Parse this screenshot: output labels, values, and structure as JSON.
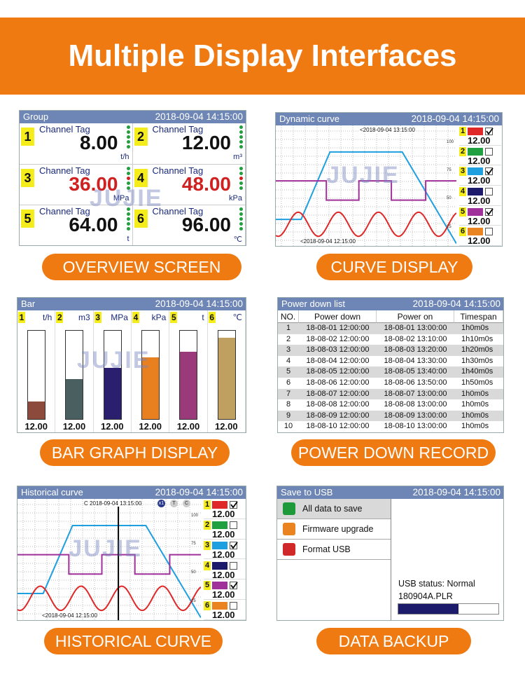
{
  "header": {
    "title": "Multiple Display Interfaces"
  },
  "overview": {
    "title": "Group",
    "datetime": "2018-09-04 14:15:00",
    "watermark": "JUJIE",
    "caption": "OVERVIEW SCREEN",
    "channels": [
      {
        "no": "1",
        "tag": "Channel Tag",
        "value": "8.00",
        "unit": "t/h",
        "color": "#111111"
      },
      {
        "no": "2",
        "tag": "Channel Tag",
        "value": "12.00",
        "unit": "m³",
        "color": "#111111"
      },
      {
        "no": "3",
        "tag": "Channel Tag",
        "value": "36.00",
        "unit": "MPa",
        "color": "#d02020"
      },
      {
        "no": "4",
        "tag": "Channel Tag",
        "value": "48.00",
        "unit": "kPa",
        "color": "#d02020"
      },
      {
        "no": "5",
        "tag": "Channel Tag",
        "value": "64.00",
        "unit": "t",
        "color": "#111111"
      },
      {
        "no": "6",
        "tag": "Channel Tag",
        "value": "96.00",
        "unit": "℃",
        "color": "#111111"
      }
    ]
  },
  "curve": {
    "title": "Dynamic curve",
    "datetime": "2018-09-04 14:15:00",
    "watermark": "JUJIE",
    "caption": "CURVE DISPLAY",
    "time_top": "<2018-09-04 13:15:00",
    "time_bottom": "<2018-09-04 12:15:00",
    "yticks": [
      "100",
      "75",
      "50",
      "25"
    ],
    "legend": [
      {
        "no": "1",
        "color": "#e02828",
        "value": "12.00",
        "checked": true
      },
      {
        "no": "2",
        "color": "#20a040",
        "value": "12.00",
        "checked": false
      },
      {
        "no": "3",
        "color": "#1ea0e0",
        "value": "12.00",
        "checked": true
      },
      {
        "no": "4",
        "color": "#1c1a6a",
        "value": "12.00",
        "checked": false
      },
      {
        "no": "5",
        "color": "#a0309a",
        "value": "12.00",
        "checked": true
      },
      {
        "no": "6",
        "color": "#ea8420",
        "value": "12.00",
        "checked": false
      }
    ]
  },
  "bar": {
    "title": "Bar",
    "datetime": "2018-09-04 14:15:00",
    "watermark": "JUJIE",
    "caption": "BAR GRAPH DISPLAY",
    "channels": [
      {
        "no": "1",
        "unit": "t/h",
        "value": "12.00",
        "level": 20,
        "color": "#8c4a3c"
      },
      {
        "no": "2",
        "unit": "m3",
        "value": "12.00",
        "level": 45,
        "color": "#4a5f60"
      },
      {
        "no": "3",
        "unit": "MPa",
        "value": "12.00",
        "level": 58,
        "color": "#2a1f6e"
      },
      {
        "no": "4",
        "unit": "kPa",
        "value": "12.00",
        "level": 70,
        "color": "#e88020"
      },
      {
        "no": "5",
        "unit": "t",
        "value": "12.00",
        "level": 76,
        "color": "#9a3a7a"
      },
      {
        "no": "6",
        "unit": "℃",
        "value": "12.00",
        "level": 92,
        "color": "#c0a060"
      }
    ]
  },
  "power_down": {
    "title": "Power down list",
    "datetime": "2018-09-04 14:15:00",
    "caption": "POWER DOWN RECORD",
    "columns": [
      "NO.",
      "Power down",
      "Power on",
      "Timespan"
    ],
    "rows": [
      [
        "1",
        "18-08-01 12:00:00",
        "18-08-01 13:00:00",
        "1h0m0s"
      ],
      [
        "2",
        "18-08-02 12:00:00",
        "18-08-02 13:10:00",
        "1h10m0s"
      ],
      [
        "3",
        "18-08-03 12:00:00",
        "18-08-03 13:20:00",
        "1h20m0s"
      ],
      [
        "4",
        "18-08-04 12:00:00",
        "18-08-04 13:30:00",
        "1h30m0s"
      ],
      [
        "5",
        "18-08-05 12:00:00",
        "18-08-05 13:40:00",
        "1h40m0s"
      ],
      [
        "6",
        "18-08-06 12:00:00",
        "18-08-06 13:50:00",
        "1h50m0s"
      ],
      [
        "7",
        "18-08-07 12:00:00",
        "18-08-07 13:00:00",
        "1h0m0s"
      ],
      [
        "8",
        "18-08-08 12:00:00",
        "18-08-08 13:00:00",
        "1h0m0s"
      ],
      [
        "9",
        "18-08-09 12:00:00",
        "18-08-09 13:00:00",
        "1h0m0s"
      ],
      [
        "10",
        "18-08-10 12:00:00",
        "18-08-10 13:00:00",
        "1h0m0s"
      ]
    ]
  },
  "historical": {
    "title": "Historical curve",
    "datetime": "2018-09-04 14:15:00",
    "watermark": "JUJIE",
    "caption": "HISTORICAL CURVE",
    "time_top": "C 2018-09-04 13:15:00",
    "time_bottom": "<2018-09-04 12:15:00",
    "icons": [
      "x1",
      "T",
      "C"
    ],
    "yticks": [
      "100",
      "75",
      "50",
      "25"
    ],
    "legend": [
      {
        "no": "1",
        "color": "#e02828",
        "value": "12.00",
        "checked": true
      },
      {
        "no": "2",
        "color": "#20a040",
        "value": "12.00",
        "checked": false
      },
      {
        "no": "3",
        "color": "#1ea0e0",
        "value": "12.00",
        "checked": true
      },
      {
        "no": "4",
        "color": "#1c1a6a",
        "value": "12.00",
        "checked": false
      },
      {
        "no": "5",
        "color": "#a0309a",
        "value": "12.00",
        "checked": true
      },
      {
        "no": "6",
        "color": "#ea8420",
        "value": "12.00",
        "checked": false
      }
    ]
  },
  "usb": {
    "title": "Save to USB",
    "datetime": "2018-09-04 14:15:00",
    "caption": "DATA BACKUP",
    "menu": [
      "All data to save",
      "Firmware upgrade",
      "Format USB"
    ],
    "status": "USB status: Normal",
    "file": "180904A.PLR",
    "progress": 60
  }
}
